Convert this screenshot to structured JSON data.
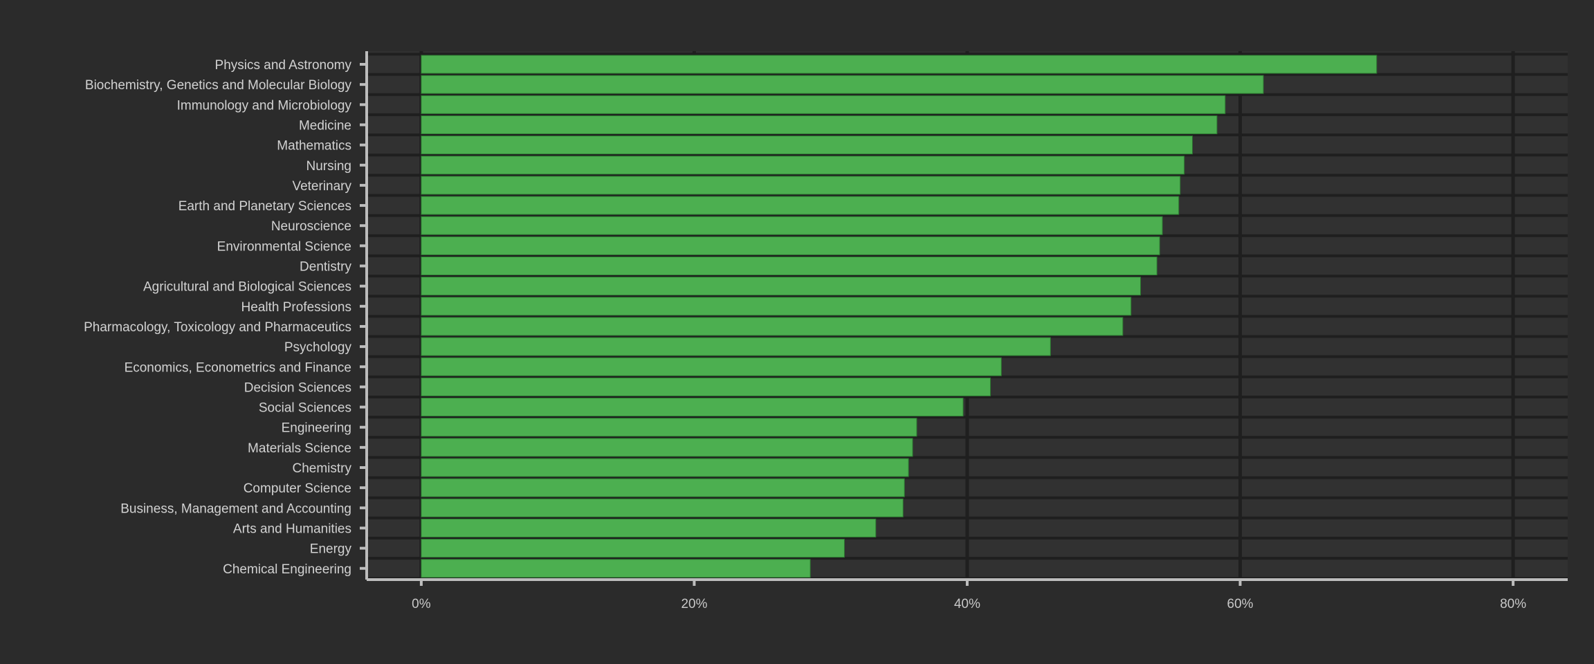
{
  "chart_data": {
    "type": "bar",
    "orientation": "horizontal",
    "categories": [
      "Physics and Astronomy",
      "Biochemistry, Genetics and Molecular Biology",
      "Immunology and Microbiology",
      "Medicine",
      "Mathematics",
      "Nursing",
      "Veterinary",
      "Earth and Planetary Sciences",
      "Neuroscience",
      "Environmental Science",
      "Dentistry",
      "Agricultural and Biological Sciences",
      "Health Professions",
      "Pharmacology, Toxicology and Pharmaceutics",
      "Psychology",
      "Economics, Econometrics and Finance",
      "Decision Sciences",
      "Social Sciences",
      "Engineering",
      "Materials Science",
      "Chemistry",
      "Computer Science",
      "Business, Management and Accounting",
      "Arts and Humanities",
      "Energy",
      "Chemical Engineering"
    ],
    "values": [
      70.0,
      61.7,
      58.9,
      58.3,
      56.5,
      55.9,
      55.6,
      55.5,
      54.3,
      54.1,
      53.9,
      52.7,
      52.0,
      51.4,
      46.1,
      42.5,
      41.7,
      39.7,
      36.3,
      36.0,
      35.7,
      35.4,
      35.3,
      33.3,
      31.0,
      28.5
    ],
    "xlim": [
      -4,
      84
    ],
    "xticks": [
      0,
      20,
      40,
      60,
      80
    ],
    "xtick_labels": [
      "0%",
      "20%",
      "40%",
      "60%",
      "80%"
    ],
    "title": "",
    "xlabel": "",
    "ylabel": "",
    "grid": true,
    "colors": {
      "background": "#2b2b2b",
      "panel": "#313131",
      "bar": "#4caf50",
      "bar_stroke": "#2e7d32",
      "grid": "#1f1f1f",
      "axis": "#bdbdbd",
      "text": "#d2d2d2"
    }
  }
}
